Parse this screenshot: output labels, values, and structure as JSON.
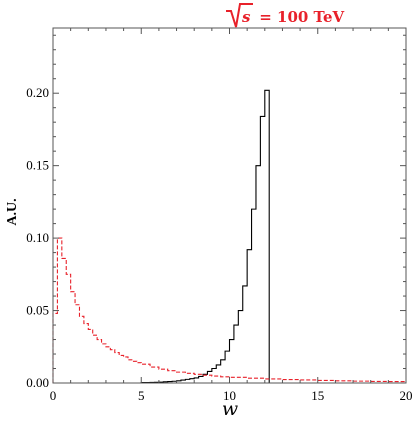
{
  "chart_data": {
    "type": "histogram",
    "title_radicand": "s",
    "title_suffix": " = 100 TeV",
    "xlabel": "w",
    "ylabel": "A.U.",
    "xlim": [
      0,
      20
    ],
    "ylim": [
      0,
      0.245
    ],
    "x_ticks": [
      "0",
      "5",
      "10",
      "15",
      "20"
    ],
    "x_tick_values": [
      0,
      5,
      10,
      15,
      20
    ],
    "y_ticks": [
      "0.00",
      "0.05",
      "0.10",
      "0.15",
      "0.20"
    ],
    "y_tick_values": [
      0,
      0.05,
      0.1,
      0.15,
      0.2
    ],
    "grid": false,
    "bin_width": 0.25,
    "series": [
      {
        "style": "solid",
        "color": "#000000",
        "bins": [
          {
            "x": 5.0,
            "y": 0.0003
          },
          {
            "x": 5.25,
            "y": 0.0003
          },
          {
            "x": 5.5,
            "y": 0.0004
          },
          {
            "x": 5.75,
            "y": 0.0005
          },
          {
            "x": 6.0,
            "y": 0.0006
          },
          {
            "x": 6.25,
            "y": 0.0008
          },
          {
            "x": 6.5,
            "y": 0.001
          },
          {
            "x": 6.75,
            "y": 0.0012
          },
          {
            "x": 7.0,
            "y": 0.0015
          },
          {
            "x": 7.25,
            "y": 0.002
          },
          {
            "x": 7.5,
            "y": 0.0025
          },
          {
            "x": 7.75,
            "y": 0.003
          },
          {
            "x": 8.0,
            "y": 0.0035
          },
          {
            "x": 8.25,
            "y": 0.0045
          },
          {
            "x": 8.5,
            "y": 0.006
          },
          {
            "x": 8.75,
            "y": 0.008
          },
          {
            "x": 9.0,
            "y": 0.01
          },
          {
            "x": 9.25,
            "y": 0.0125
          },
          {
            "x": 9.5,
            "y": 0.016
          },
          {
            "x": 9.75,
            "y": 0.022
          },
          {
            "x": 10.0,
            "y": 0.03
          },
          {
            "x": 10.25,
            "y": 0.04
          },
          {
            "x": 10.5,
            "y": 0.05
          },
          {
            "x": 10.75,
            "y": 0.067
          },
          {
            "x": 11.0,
            "y": 0.092
          },
          {
            "x": 11.25,
            "y": 0.12
          },
          {
            "x": 11.5,
            "y": 0.15
          },
          {
            "x": 11.75,
            "y": 0.184
          },
          {
            "x": 12.0,
            "y": 0.202
          },
          {
            "x": 12.25,
            "y": 0.0
          }
        ]
      },
      {
        "style": "dashed",
        "color": "#e8212a",
        "bins": [
          {
            "x": 0.0,
            "y": 0.048
          },
          {
            "x": 0.25,
            "y": 0.1
          },
          {
            "x": 0.5,
            "y": 0.086
          },
          {
            "x": 0.75,
            "y": 0.075
          },
          {
            "x": 1.0,
            "y": 0.063
          },
          {
            "x": 1.25,
            "y": 0.054
          },
          {
            "x": 1.5,
            "y": 0.046
          },
          {
            "x": 1.75,
            "y": 0.041
          },
          {
            "x": 2.0,
            "y": 0.037
          },
          {
            "x": 2.25,
            "y": 0.033
          },
          {
            "x": 2.5,
            "y": 0.03
          },
          {
            "x": 2.75,
            "y": 0.027
          },
          {
            "x": 3.0,
            "y": 0.025
          },
          {
            "x": 3.25,
            "y": 0.023
          },
          {
            "x": 3.5,
            "y": 0.021
          },
          {
            "x": 3.75,
            "y": 0.019
          },
          {
            "x": 4.0,
            "y": 0.018
          },
          {
            "x": 4.25,
            "y": 0.016
          },
          {
            "x": 4.5,
            "y": 0.015
          },
          {
            "x": 4.75,
            "y": 0.014
          },
          {
            "x": 5.0,
            "y": 0.013
          },
          {
            "x": 5.5,
            "y": 0.011
          },
          {
            "x": 6.0,
            "y": 0.0095
          },
          {
            "x": 6.5,
            "y": 0.0085
          },
          {
            "x": 7.0,
            "y": 0.0075
          },
          {
            "x": 7.5,
            "y": 0.0067
          },
          {
            "x": 8.0,
            "y": 0.006
          },
          {
            "x": 8.5,
            "y": 0.0054
          },
          {
            "x": 9.0,
            "y": 0.0048
          },
          {
            "x": 9.5,
            "y": 0.0043
          },
          {
            "x": 10.0,
            "y": 0.0039
          },
          {
            "x": 11.0,
            "y": 0.0033
          },
          {
            "x": 12.0,
            "y": 0.0028
          },
          {
            "x": 13.0,
            "y": 0.0024
          },
          {
            "x": 14.0,
            "y": 0.0021
          },
          {
            "x": 15.0,
            "y": 0.0018
          },
          {
            "x": 16.0,
            "y": 0.0015
          },
          {
            "x": 17.0,
            "y": 0.0013
          },
          {
            "x": 18.0,
            "y": 0.0011
          },
          {
            "x": 19.0,
            "y": 0.001
          },
          {
            "x": 20.0,
            "y": 0.001
          }
        ]
      }
    ]
  }
}
